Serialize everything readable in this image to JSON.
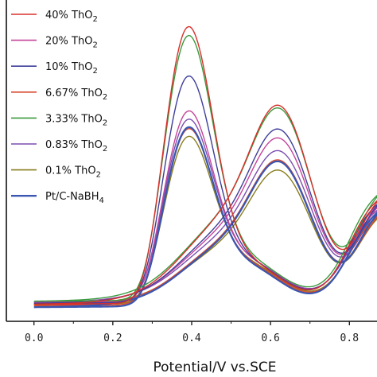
{
  "chart_data": {
    "type": "line",
    "xlabel": "Potential/V vs.SCE",
    "ylabel": "",
    "xlim": [
      -0.07,
      0.87
    ],
    "ylim": [
      0,
      1
    ],
    "xticks": [
      "0.0",
      "0.2",
      "0.4",
      "0.6",
      "0.8"
    ],
    "xtick_values": [
      0.0,
      0.2,
      0.4,
      0.6,
      0.8
    ],
    "legend_position": "top-left",
    "series": [
      {
        "name": "40% ThO",
        "sub": "2",
        "color": "#d7302b",
        "peak_fwd": 0.93,
        "peak_rev": 0.52,
        "base": 0.025,
        "tail": 0.43
      },
      {
        "name": "20% ThO",
        "sub": "2",
        "color": "#c4449a",
        "peak_fwd": 0.64,
        "peak_rev": 0.43,
        "base": 0.03,
        "tail": 0.4
      },
      {
        "name": "10% ThO",
        "sub": "2",
        "color": "#3e3e9a",
        "peak_fwd": 0.76,
        "peak_rev": 0.455,
        "base": 0.028,
        "tail": 0.41
      },
      {
        "name": "6.67% ThO",
        "sub": "2",
        "color": "#d8482f",
        "peak_fwd": 0.59,
        "peak_rev": 0.38,
        "base": 0.02,
        "tail": 0.37
      },
      {
        "name": "3.33% ThO",
        "sub": "2",
        "color": "#3b9a3e",
        "peak_fwd": 0.89,
        "peak_rev": 0.505,
        "base": 0.035,
        "tail": 0.44
      },
      {
        "name": "0.83% ThO",
        "sub": "2",
        "color": "#7b4fb0",
        "peak_fwd": 0.61,
        "peak_rev": 0.395,
        "base": 0.032,
        "tail": 0.38
      },
      {
        "name": "0.1% ThO",
        "sub": "2",
        "color": "#8a7d1e",
        "peak_fwd": 0.56,
        "peak_rev": 0.35,
        "base": 0.024,
        "tail": 0.36
      },
      {
        "name": "Pt/C-NaBH",
        "sub": "4",
        "color": "#3a56b0",
        "peak_fwd": 0.6,
        "peak_rev": 0.38,
        "base": 0.015,
        "tail": 0.39
      }
    ]
  }
}
